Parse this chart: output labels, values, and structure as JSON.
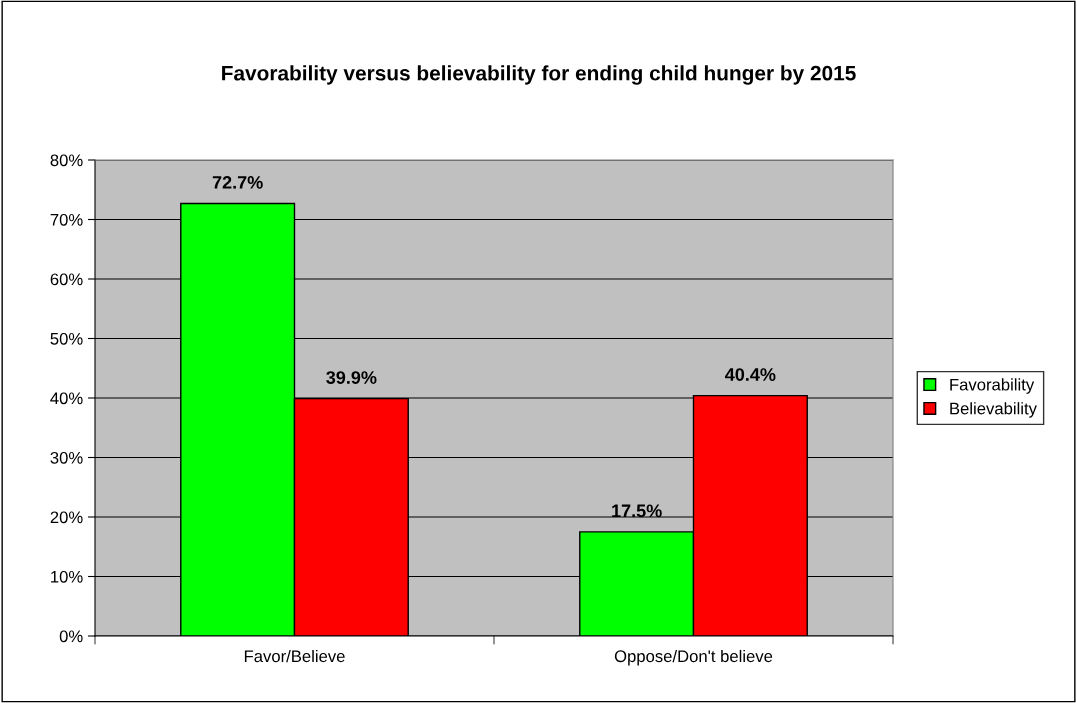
{
  "chart_data": {
    "type": "bar",
    "title": "Favorability versus believability for ending child hunger by 2015",
    "categories": [
      "Favor/Believe",
      "Oppose/Don't believe"
    ],
    "series": [
      {
        "name": "Favorability",
        "color": "#00ff00",
        "values": [
          72.7,
          17.5
        ],
        "value_labels": [
          "72.7%",
          "17.5%"
        ]
      },
      {
        "name": "Believability",
        "color": "#ff0000",
        "values": [
          39.9,
          40.4
        ],
        "value_labels": [
          "39.9%",
          "40.4%"
        ]
      }
    ],
    "ylim": [
      0,
      80
    ],
    "yticks": [
      {
        "value": 0,
        "label": "0%"
      },
      {
        "value": 10,
        "label": "10%"
      },
      {
        "value": 20,
        "label": "20%"
      },
      {
        "value": 30,
        "label": "30%"
      },
      {
        "value": 40,
        "label": "40%"
      },
      {
        "value": 50,
        "label": "50%"
      },
      {
        "value": 60,
        "label": "60%"
      },
      {
        "value": 70,
        "label": "70%"
      },
      {
        "value": 80,
        "label": "80%"
      }
    ],
    "grid": "y",
    "legend": "right"
  }
}
